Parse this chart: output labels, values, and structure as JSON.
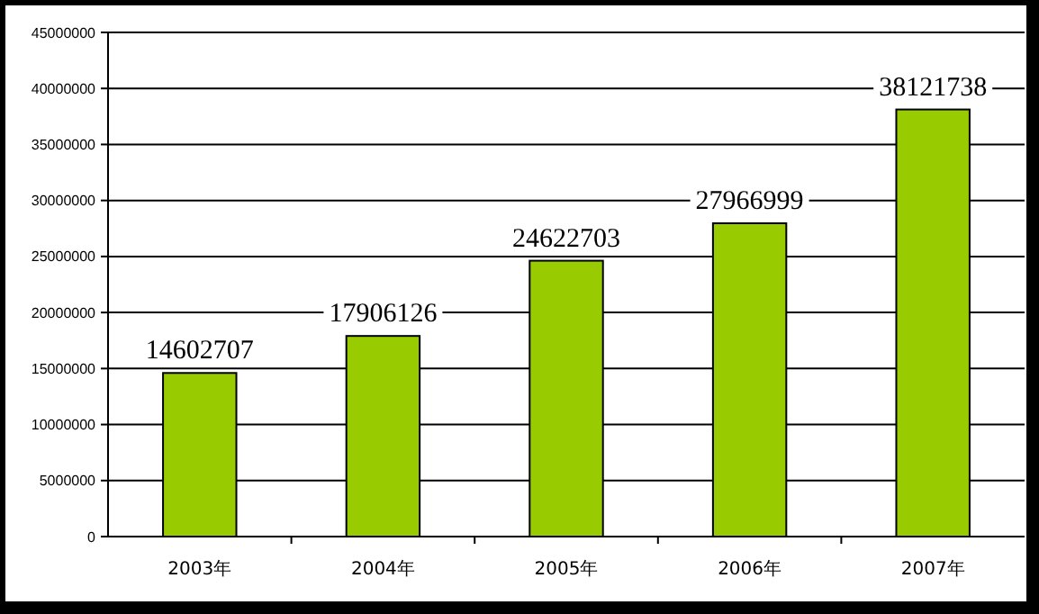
{
  "chart_data": {
    "type": "bar",
    "categories": [
      "2003年",
      "2004年",
      "2005年",
      "2006年",
      "2007年"
    ],
    "values": [
      14602707,
      17906126,
      24622703,
      27966999,
      38121738
    ],
    "color": "#99cc00",
    "ylim": [
      0,
      45000000
    ],
    "yticks": [
      0,
      5000000,
      10000000,
      15000000,
      20000000,
      25000000,
      30000000,
      35000000,
      40000000,
      45000000
    ],
    "grid": "y",
    "data_labels": true
  }
}
